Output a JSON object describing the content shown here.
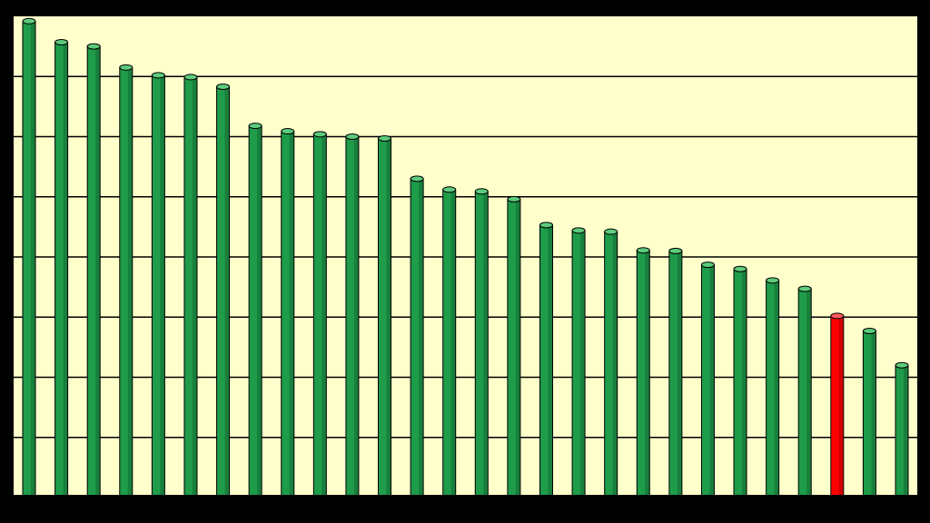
{
  "chart_data": {
    "type": "bar",
    "style": "cylinder",
    "ylim": [
      0,
      8
    ],
    "gridlines": [
      1,
      2,
      3,
      4,
      5,
      6,
      7
    ],
    "grid": true,
    "legend": "none",
    "colors": {
      "background": "#000000",
      "plot_background": "#FFFFCC",
      "gridline": "#000000",
      "bar_default": "#1E9C4A",
      "bar_highlight": "#FF0000"
    },
    "values": [
      7.92,
      7.57,
      7.5,
      7.15,
      7.02,
      6.99,
      6.83,
      6.18,
      6.09,
      6.04,
      6.0,
      5.97,
      5.3,
      5.12,
      5.09,
      4.96,
      4.53,
      4.44,
      4.42,
      4.11,
      4.1,
      3.87,
      3.8,
      3.61,
      3.47,
      3.02,
      2.77,
      2.2
    ],
    "highlight_index": 25
  }
}
